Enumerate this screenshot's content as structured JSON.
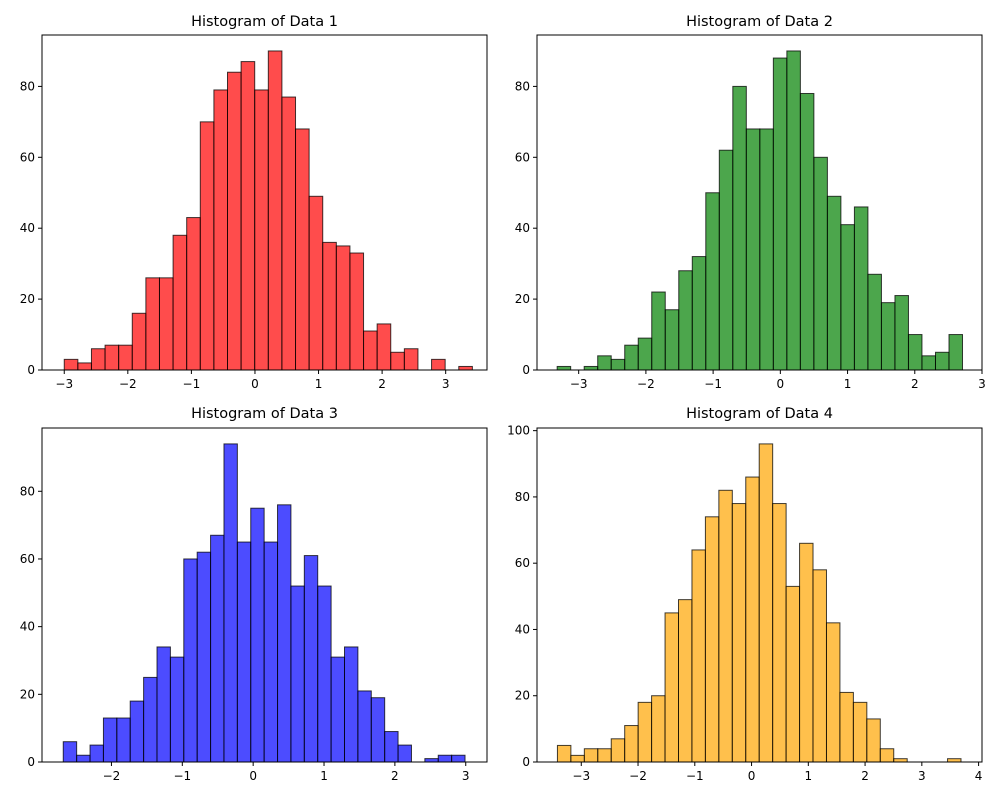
{
  "chart_data": [
    {
      "type": "bar",
      "title": "Histogram of Data 1",
      "color": "#ff0000",
      "xlim": [
        -3.35,
        3.65
      ],
      "ylim": [
        0,
        94.5
      ],
      "xticks": [
        -3,
        -2,
        -1,
        0,
        1,
        2,
        3
      ],
      "yticks": [
        0,
        20,
        40,
        60,
        80
      ],
      "bin_edges": [
        -3.0,
        -2.786,
        -2.572,
        -2.358,
        -2.144,
        -1.93,
        -1.716,
        -1.502,
        -1.288,
        -1.074,
        -0.86,
        -0.646,
        -0.432,
        -0.218,
        -0.004,
        0.21,
        0.424,
        0.638,
        0.852,
        1.066,
        1.28,
        1.494,
        1.708,
        1.922,
        2.136,
        2.35,
        2.564,
        2.778,
        2.992,
        3.206,
        3.42
      ],
      "counts": [
        3,
        2,
        6,
        7,
        7,
        16,
        26,
        26,
        38,
        43,
        70,
        79,
        84,
        87,
        79,
        90,
        77,
        68,
        49,
        36,
        35,
        33,
        11,
        13,
        5,
        6,
        0,
        3,
        0,
        1
      ]
    },
    {
      "type": "bar",
      "title": "Histogram of Data 2",
      "color": "#008000",
      "xlim": [
        -3.62,
        3.0
      ],
      "ylim": [
        0,
        94.5
      ],
      "xticks": [
        -3,
        -2,
        -1,
        0,
        1,
        2,
        3
      ],
      "yticks": [
        0,
        20,
        40,
        60,
        80
      ],
      "bin_edges": [
        -3.32,
        -3.119,
        -2.918,
        -2.717,
        -2.516,
        -2.315,
        -2.114,
        -1.913,
        -1.712,
        -1.511,
        -1.31,
        -1.109,
        -0.908,
        -0.707,
        -0.506,
        -0.305,
        -0.104,
        0.097,
        0.298,
        0.499,
        0.7,
        0.901,
        1.102,
        1.303,
        1.504,
        1.705,
        1.906,
        2.107,
        2.308,
        2.509,
        2.71
      ],
      "counts": [
        1,
        0,
        1,
        4,
        3,
        7,
        9,
        22,
        17,
        28,
        32,
        50,
        62,
        80,
        68,
        68,
        88,
        90,
        78,
        60,
        49,
        41,
        46,
        27,
        19,
        21,
        10,
        4,
        5,
        10
      ]
    },
    {
      "type": "bar",
      "title": "Histogram of Data 3",
      "color": "#0000ff",
      "xlim": [
        -2.98,
        3.3
      ],
      "ylim": [
        0,
        98.7
      ],
      "xticks": [
        -2,
        -1,
        0,
        1,
        2,
        3
      ],
      "yticks": [
        0,
        20,
        40,
        60,
        80
      ],
      "bin_edges": [
        -2.68,
        -2.491,
        -2.302,
        -2.113,
        -1.924,
        -1.735,
        -1.546,
        -1.357,
        -1.168,
        -0.979,
        -0.79,
        -0.601,
        -0.412,
        -0.223,
        -0.034,
        0.155,
        0.344,
        0.533,
        0.722,
        0.911,
        1.1,
        1.289,
        1.478,
        1.667,
        1.856,
        2.045,
        2.234,
        2.423,
        2.612,
        2.801,
        2.99
      ],
      "counts": [
        6,
        2,
        5,
        13,
        13,
        18,
        25,
        34,
        31,
        60,
        62,
        67,
        94,
        65,
        75,
        65,
        76,
        52,
        61,
        52,
        31,
        34,
        21,
        19,
        9,
        5,
        0,
        1,
        2,
        2
      ]
    },
    {
      "type": "bar",
      "title": "Histogram of Data 4",
      "color": "#ffa500",
      "xlim": [
        -3.78,
        4.06
      ],
      "ylim": [
        0,
        100.8
      ],
      "xticks": [
        -3,
        -2,
        -1,
        0,
        1,
        2,
        3,
        4
      ],
      "yticks": [
        0,
        20,
        40,
        60,
        80,
        100
      ],
      "bin_edges": [
        -3.42,
        -3.183,
        -2.946,
        -2.709,
        -2.472,
        -2.235,
        -1.998,
        -1.761,
        -1.524,
        -1.287,
        -1.05,
        -0.813,
        -0.576,
        -0.339,
        -0.102,
        0.135,
        0.372,
        0.609,
        0.846,
        1.083,
        1.32,
        1.557,
        1.794,
        2.031,
        2.268,
        2.505,
        2.742,
        2.979,
        3.216,
        3.453,
        3.69
      ],
      "counts": [
        5,
        2,
        4,
        4,
        7,
        11,
        18,
        20,
        45,
        49,
        64,
        74,
        82,
        78,
        86,
        96,
        78,
        53,
        66,
        58,
        42,
        21,
        18,
        13,
        4,
        1,
        0,
        0,
        0,
        1
      ]
    }
  ]
}
